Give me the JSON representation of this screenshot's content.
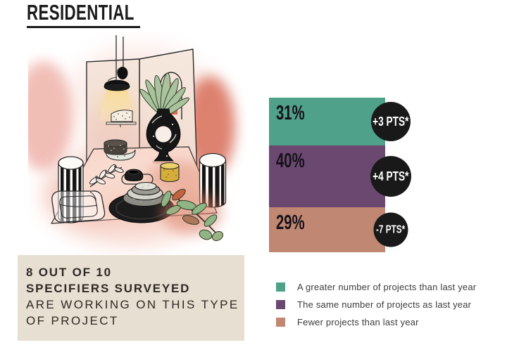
{
  "title": "RESIDENTIAL",
  "illustration": {
    "name": "residential-dining-scene"
  },
  "chart_data": {
    "type": "bar",
    "stacked": true,
    "title": "RESIDENTIAL",
    "unit": "%",
    "total": 100,
    "legend_position": "bottom-right",
    "series": [
      {
        "label": "A greater number of projects than last year",
        "value": 31,
        "value_label": "31%",
        "change": "+3 PTS*",
        "color": "#4FA189"
      },
      {
        "label": "The same number of projects as last year",
        "value": 40,
        "value_label": "40%",
        "change": "+4 PTS*",
        "color": "#6A4870"
      },
      {
        "label": "Fewer projects than last year",
        "value": 29,
        "value_label": "29%",
        "change": "-7 PTS*",
        "color": "#C08772"
      }
    ],
    "badge_color": "#191919"
  },
  "callout": {
    "background": "#E7DFD2",
    "lines": [
      "8 OUT OF 10",
      "SPECIFIERS SURVEYED",
      "ARE WORKING ON THIS TYPE",
      "OF PROJECT"
    ]
  }
}
